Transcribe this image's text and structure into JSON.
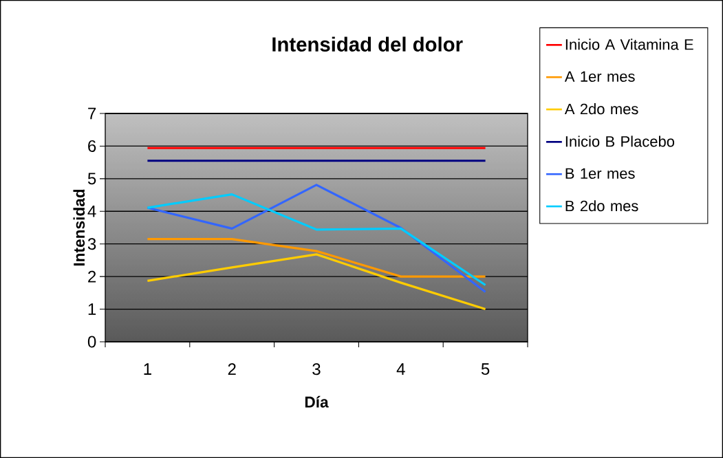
{
  "chart_data": {
    "type": "line",
    "title": "Intensidad del dolor",
    "xlabel": "Día",
    "ylabel": "Intensidad",
    "categories": [
      "1",
      "2",
      "3",
      "4",
      "5"
    ],
    "series": [
      {
        "name": "Inicio A Vitamina E",
        "color": "#ff0000",
        "values": [
          5.94,
          5.94,
          5.94,
          5.94,
          5.94
        ]
      },
      {
        "name": "A 1er mes",
        "color": "#ff9900",
        "values": [
          3.15,
          3.15,
          2.78,
          2.0,
          2.0
        ]
      },
      {
        "name": "A 2do mes",
        "color": "#ffcc00",
        "values": [
          1.87,
          2.28,
          2.68,
          1.81,
          1.0
        ]
      },
      {
        "name": "Inicio B Placebo",
        "color": "#000080",
        "values": [
          5.55,
          5.55,
          5.55,
          5.55,
          5.55
        ]
      },
      {
        "name": "B 1er mes",
        "color": "#3366ff",
        "values": [
          4.11,
          3.47,
          4.81,
          3.49,
          1.53
        ]
      },
      {
        "name": "B 2do mes",
        "color": "#00ccff",
        "values": [
          4.11,
          4.52,
          3.44,
          3.47,
          1.74
        ]
      }
    ],
    "ylim": [
      0,
      7
    ],
    "yticks": [
      0,
      1,
      2,
      3,
      4,
      5,
      6,
      7
    ],
    "grid": "y",
    "legend": "right",
    "marker": "none",
    "line_style": "solid"
  }
}
